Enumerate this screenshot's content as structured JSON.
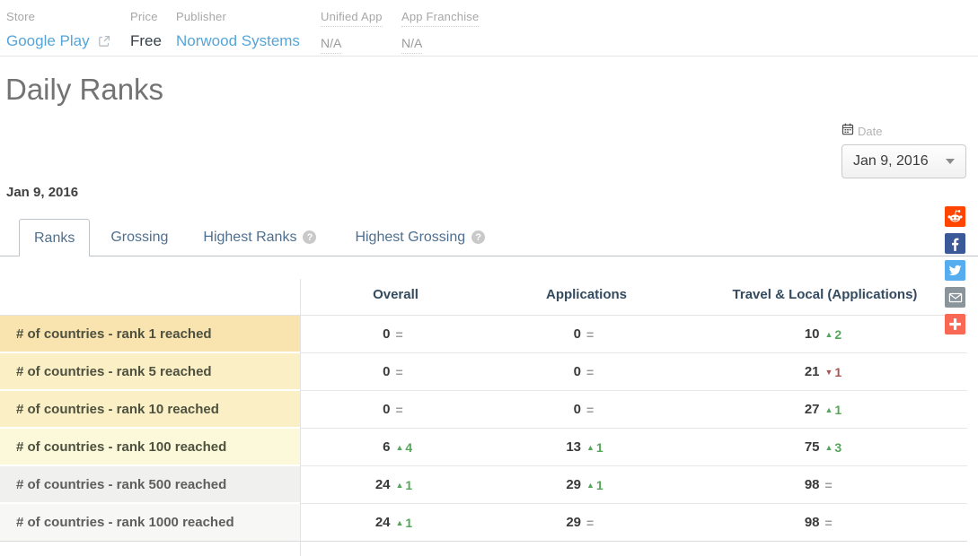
{
  "header": {
    "fields": [
      {
        "label": "Store",
        "value": "Google Play"
      },
      {
        "label": "Price",
        "value": "Free"
      },
      {
        "label": "Publisher",
        "value": "Norwood Systems"
      },
      {
        "label": "Unified App",
        "value": "N/A"
      },
      {
        "label": "App Franchise",
        "value": "N/A"
      }
    ]
  },
  "page_title": "Daily Ranks",
  "date_picker": {
    "label": "Date",
    "selected": "Jan 9, 2016"
  },
  "selected_date_heading": "Jan 9, 2016",
  "tabs": [
    {
      "label": "Ranks",
      "active": true,
      "help": false
    },
    {
      "label": "Grossing",
      "active": false,
      "help": false
    },
    {
      "label": "Highest Ranks",
      "active": false,
      "help": true
    },
    {
      "label": "Highest Grossing",
      "active": false,
      "help": true
    }
  ],
  "share_buttons": [
    {
      "name": "reddit",
      "color": "#ff4500"
    },
    {
      "name": "facebook",
      "color": "#3b5998"
    },
    {
      "name": "twitter",
      "color": "#55acee"
    },
    {
      "name": "email",
      "color": "#8a959b"
    },
    {
      "name": "addthis-plus",
      "color": "#f96854"
    }
  ],
  "ranks_table": {
    "columns": [
      "Overall",
      "Applications",
      "Travel & Local (Applications)"
    ],
    "rows": [
      {
        "label": "# of countries - rank 1 reached",
        "values": [
          {
            "value": "0",
            "change": "same",
            "delta": ""
          },
          {
            "value": "0",
            "change": "same",
            "delta": ""
          },
          {
            "value": "10",
            "change": "up",
            "delta": "2"
          }
        ]
      },
      {
        "label": "# of countries - rank 5 reached",
        "values": [
          {
            "value": "0",
            "change": "same",
            "delta": ""
          },
          {
            "value": "0",
            "change": "same",
            "delta": ""
          },
          {
            "value": "21",
            "change": "down",
            "delta": "1"
          }
        ]
      },
      {
        "label": "# of countries - rank 10 reached",
        "values": [
          {
            "value": "0",
            "change": "same",
            "delta": ""
          },
          {
            "value": "0",
            "change": "same",
            "delta": ""
          },
          {
            "value": "27",
            "change": "up",
            "delta": "1"
          }
        ]
      },
      {
        "label": "# of countries - rank 100 reached",
        "values": [
          {
            "value": "6",
            "change": "up",
            "delta": "4"
          },
          {
            "value": "13",
            "change": "up",
            "delta": "1"
          },
          {
            "value": "75",
            "change": "up",
            "delta": "3"
          }
        ]
      },
      {
        "label": "# of countries - rank 500 reached",
        "values": [
          {
            "value": "24",
            "change": "up",
            "delta": "1"
          },
          {
            "value": "29",
            "change": "up",
            "delta": "1"
          },
          {
            "value": "98",
            "change": "same",
            "delta": ""
          }
        ]
      },
      {
        "label": "# of countries - rank 1000 reached",
        "values": [
          {
            "value": "24",
            "change": "up",
            "delta": "1"
          },
          {
            "value": "29",
            "change": "same",
            "delta": ""
          },
          {
            "value": "98",
            "change": "same",
            "delta": ""
          }
        ]
      }
    ]
  },
  "colors": {
    "up": "#57a55c",
    "down": "#a65552",
    "same": "#9c9c9c",
    "link": "#55a5d9"
  }
}
